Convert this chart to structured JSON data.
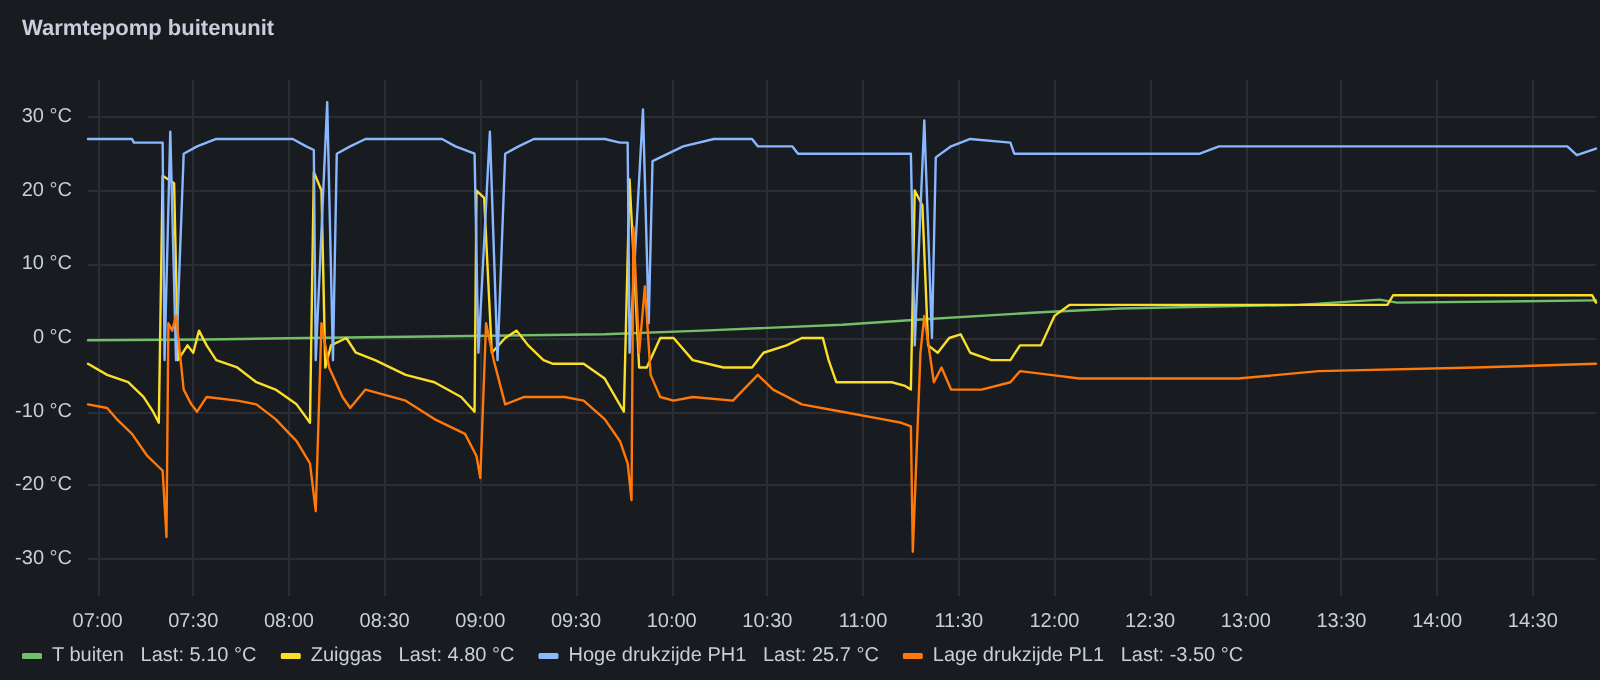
{
  "chart_data": {
    "type": "line",
    "title": "Warmtepomp buitenunit",
    "xlim": [
      6.95,
      14.83
    ],
    "ylim": [
      -35,
      35
    ],
    "xticks": [
      {
        "value": 7,
        "label": "07:00"
      },
      {
        "value": 7.5,
        "label": "07:30"
      },
      {
        "value": 8,
        "label": "08:00"
      },
      {
        "value": 8.5,
        "label": "08:30"
      },
      {
        "value": 9,
        "label": "09:00"
      },
      {
        "value": 9.5,
        "label": "09:30"
      },
      {
        "value": 10,
        "label": "10:00"
      },
      {
        "value": 10.5,
        "label": "10:30"
      },
      {
        "value": 11,
        "label": "11:00"
      },
      {
        "value": 11.5,
        "label": "11:30"
      },
      {
        "value": 12,
        "label": "12:00"
      },
      {
        "value": 12.5,
        "label": "12:30"
      },
      {
        "value": 13,
        "label": "13:00"
      },
      {
        "value": 13.5,
        "label": "13:30"
      },
      {
        "value": 14,
        "label": "14:00"
      },
      {
        "value": 14.5,
        "label": "14:30"
      }
    ],
    "yticks": [
      {
        "value": -30,
        "label": "-30 °C"
      },
      {
        "value": -20,
        "label": "-20 °C"
      },
      {
        "value": -10,
        "label": "-10 °C"
      },
      {
        "value": 0,
        "label": "0 °C"
      },
      {
        "value": 10,
        "label": "10 °C"
      },
      {
        "value": 20,
        "label": "20 °C"
      },
      {
        "value": 30,
        "label": "30 °C"
      }
    ],
    "grid": true,
    "legend": "bottom left",
    "marker": "none",
    "line_style": "solid",
    "series": [
      {
        "name": "T buiten   Last: 5.10 °C",
        "color": "#73bf69",
        "x": [
          6.95,
          7.57,
          8.09,
          9.65,
          10.16,
          10.89,
          11.3,
          11.93,
          12.34,
          13.28,
          13.7,
          13.79,
          14.83
        ],
        "values": [
          -0.3,
          -0.2,
          0,
          0.5,
          1,
          1.8,
          2.5,
          3.5,
          4,
          4.5,
          5.2,
          4.8,
          5.1
        ]
      },
      {
        "name": "Zuiggas   Last: 4.80 °C",
        "color": "#fade2a",
        "x": [
          6.95,
          7.05,
          7.16,
          7.24,
          7.29,
          7.32,
          7.34,
          7.4,
          7.42,
          7.47,
          7.5,
          7.53,
          7.57,
          7.62,
          7.73,
          7.83,
          7.93,
          8.04,
          8.11,
          8.13,
          8.17,
          8.19,
          8.22,
          8.3,
          8.35,
          8.45,
          8.61,
          8.76,
          8.9,
          8.97,
          8.98,
          9.02,
          9.06,
          9.13,
          9.19,
          9.25,
          9.33,
          9.38,
          9.54,
          9.65,
          9.75,
          9.78,
          9.83,
          9.87,
          9.94,
          10.01,
          10.11,
          10.27,
          10.42,
          10.48,
          10.6,
          10.68,
          10.79,
          10.82,
          10.86,
          10.99,
          11.15,
          11.22,
          11.25,
          11.27,
          11.31,
          11.34,
          11.39,
          11.45,
          11.51,
          11.56,
          11.67,
          11.77,
          11.82,
          11.93,
          12.0,
          12.08,
          13.74,
          13.77,
          14.81,
          14.83
        ],
        "values": [
          -3.5,
          -5,
          -6,
          -8,
          -10,
          -11.5,
          22,
          21,
          -3,
          -1,
          -2,
          1,
          -1,
          -3,
          -4,
          -6,
          -7,
          -9,
          -11.5,
          22.5,
          20,
          -4,
          -1,
          0,
          -2,
          -3,
          -5,
          -6,
          -8,
          -10,
          20,
          19,
          -2,
          0,
          1,
          -1,
          -3,
          -3.5,
          -3.5,
          -5.5,
          -10,
          21.5,
          -4,
          -4,
          0,
          0,
          -3,
          -4,
          -4,
          -2,
          -1,
          0,
          0,
          -3,
          -6,
          -6,
          -6,
          -6.5,
          -7,
          20,
          18,
          -1,
          -2,
          0,
          0.5,
          -2,
          -3,
          -3,
          -1,
          -1,
          3,
          4.5,
          4.5,
          5.8,
          5.8,
          4.8
        ]
      },
      {
        "name": "Hoge drukzijde PH1   Last: 25.7 °C",
        "color": "#8ab8ff",
        "x": [
          6.95,
          7.18,
          7.19,
          7.34,
          7.35,
          7.38,
          7.41,
          7.45,
          7.52,
          7.62,
          8.02,
          8.09,
          8.13,
          8.14,
          8.2,
          8.23,
          8.25,
          8.32,
          8.4,
          8.8,
          8.87,
          8.97,
          8.99,
          9.05,
          9.09,
          9.13,
          9.2,
          9.28,
          9.65,
          9.73,
          9.77,
          9.78,
          9.85,
          9.88,
          9.9,
          10.06,
          10.22,
          10.42,
          10.45,
          10.63,
          10.66,
          11.25,
          11.27,
          11.32,
          11.36,
          11.38,
          11.46,
          11.56,
          11.77,
          11.79,
          12.76,
          12.86,
          14.68,
          14.73,
          14.83
        ],
        "values": [
          27,
          27,
          26.5,
          26.5,
          -3,
          28,
          -3,
          25,
          26,
          27,
          27,
          26,
          25.5,
          -3,
          32,
          -3,
          25,
          26,
          27,
          27,
          26,
          25,
          -2,
          28,
          -3,
          25,
          26,
          27,
          27,
          26.5,
          26.5,
          -2,
          31,
          2,
          24,
          26,
          27,
          27,
          26,
          26,
          25,
          25,
          -1,
          29.5,
          0,
          24.5,
          26,
          27,
          26.5,
          25,
          25,
          26,
          26,
          24.8,
          25.7
        ]
      },
      {
        "name": "Lage drukzijde PL1   Last: -3.50 °C",
        "color": "#ff780a",
        "x": [
          6.95,
          7.05,
          7.1,
          7.18,
          7.26,
          7.32,
          7.34,
          7.36,
          7.37,
          7.39,
          7.41,
          7.45,
          7.49,
          7.52,
          7.57,
          7.73,
          7.83,
          7.93,
          8.04,
          8.11,
          8.14,
          8.17,
          8.21,
          8.28,
          8.32,
          8.4,
          8.61,
          8.76,
          8.92,
          8.98,
          9.0,
          9.03,
          9.07,
          9.13,
          9.23,
          9.44,
          9.54,
          9.65,
          9.73,
          9.77,
          9.79,
          9.8,
          9.83,
          9.86,
          9.89,
          9.94,
          10.01,
          10.11,
          10.32,
          10.45,
          10.53,
          10.68,
          10.89,
          11.1,
          11.2,
          11.25,
          11.26,
          11.3,
          11.32,
          11.37,
          11.41,
          11.46,
          11.62,
          11.77,
          11.82,
          11.98,
          12.13,
          12.96,
          13.38,
          14.2,
          14.83
        ],
        "values": [
          -9,
          -9.5,
          -11,
          -13,
          -16,
          -17.5,
          -18,
          -27,
          2,
          1,
          3,
          -7,
          -9,
          -10,
          -8,
          -8.5,
          -9,
          -11,
          -14,
          -17,
          -23.5,
          2,
          -4,
          -8,
          -9.5,
          -7,
          -8.5,
          -11,
          -13,
          -16,
          -19,
          2,
          -3,
          -9,
          -8,
          -8,
          -8.5,
          -11,
          -14,
          -17,
          -22,
          15,
          -2,
          7,
          -5,
          -8,
          -8.5,
          -8,
          -8.5,
          -5,
          -7,
          -9,
          -10,
          -11,
          -11.5,
          -12,
          -29,
          -2,
          3,
          -6,
          -4,
          -7,
          -7,
          -6,
          -4.5,
          -5,
          -5.5,
          -5.5,
          -4.5,
          -4,
          -3.5
        ]
      }
    ]
  }
}
